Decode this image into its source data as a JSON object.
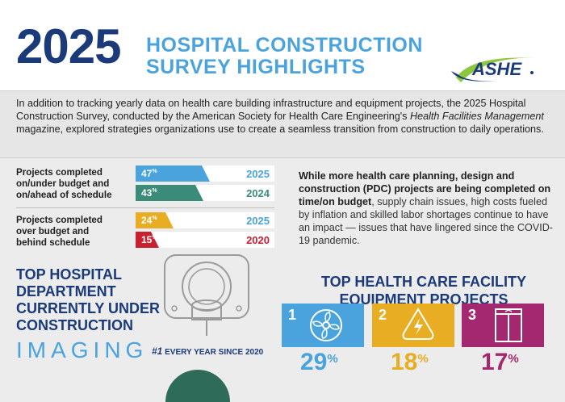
{
  "header": {
    "year": "2025",
    "title_line1": "HOSPITAL CONSTRUCTION",
    "title_line2": "SURVEY HIGHLIGHTS",
    "logo_text": "ASHE"
  },
  "intro": {
    "part1": "In addition to tracking yearly data on health care building infrastructure and equipment projects, the 2025 Hospital Construction Survey, conducted by the American Society for Health Care Engineering's ",
    "magazine": "Health Facilities Management",
    "part2": " magazine, explored strategies organizations use to create a seamless transition from construction to daily operations."
  },
  "budget_stats": [
    {
      "label_lines": [
        "Projects completed",
        "on/under budget and",
        "on/ahead of schedule"
      ],
      "bars": [
        {
          "percent": 47,
          "pct_text": "47",
          "year": "2025",
          "color": "#4aa3dd",
          "year_color": "#4aa3dd"
        },
        {
          "percent": 43,
          "pct_text": "43",
          "year": "2024",
          "color": "#3a8c78",
          "year_color": "#3a8c78"
        }
      ]
    },
    {
      "label_lines": [
        "Projects completed",
        "over budget and",
        "behind schedule"
      ],
      "bars": [
        {
          "percent": 24,
          "pct_text": "24",
          "year": "2025",
          "color": "#e8ad22",
          "year_color": "#4aa3dd"
        },
        {
          "percent": 15,
          "pct_text": "15",
          "year": "2020",
          "color": "#c8202f",
          "year_color": "#c8202f"
        }
      ]
    }
  ],
  "pct_suffix": "%",
  "right_text": {
    "bold": "While more health care planning, design and construction (PDC) projects are being completed on time/on budget",
    "rest": ", supply chain issues, high costs fueled by inflation and skilled labor shortages continue to have an impact — issues that have lingered since the COVID-19 pandemic."
  },
  "department": {
    "heading_lines": [
      "TOP HOSPITAL",
      "DEPARTMENT",
      "CURRENTLY UNDER",
      "CONSTRUCTION"
    ],
    "name": "IMAGING",
    "rank": "#1",
    "since": "EVERY YEAR SINCE 2020"
  },
  "equipment": {
    "heading_lines": [
      "TOP HEALTH CARE FACILITY",
      "EQUIPMENT PROJECTS"
    ],
    "items": [
      {
        "rank": "1",
        "percent": 29,
        "icon": "fan-icon",
        "color": "#4aa3dd",
        "pct_color": "#4aa3dd"
      },
      {
        "rank": "2",
        "percent": 18,
        "icon": "electrical-icon",
        "color": "#e8ad22",
        "pct_color": "#e8ad22"
      },
      {
        "rank": "3",
        "percent": 17,
        "icon": "elevator-icon",
        "color": "#a4286f",
        "pct_color": "#a4286f"
      }
    ]
  },
  "colors": {
    "navy": "#1b3a7a",
    "accent_blue": "#4aa3dd",
    "ashe_green": "#8dc63f"
  }
}
